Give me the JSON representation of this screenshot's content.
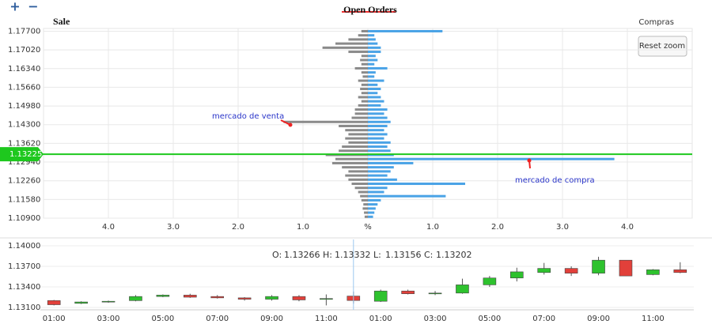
{
  "controls": {
    "zoom_in": "+",
    "zoom_out": "−",
    "reset_zoom": "Reset zoom"
  },
  "chart_data": [
    {
      "type": "orderbook",
      "title": "Open Orders",
      "prices": [
        1.1095,
        1.111,
        1.1125,
        1.114,
        1.1155,
        1.117,
        1.1185,
        1.12,
        1.1215,
        1.123,
        1.1245,
        1.126,
        1.1275,
        1.129,
        1.1305,
        1.132,
        1.1335,
        1.135,
        1.1365,
        1.138,
        1.1395,
        1.141,
        1.1425,
        1.144,
        1.1455,
        1.147,
        1.1485,
        1.15,
        1.1515,
        1.153,
        1.1545,
        1.156,
        1.1575,
        1.159,
        1.1605,
        1.162,
        1.1635,
        1.165,
        1.1665,
        1.168,
        1.1695,
        1.171,
        1.1725,
        1.174,
        1.1755,
        1.177
      ],
      "series": [
        {
          "name": "Sale",
          "color": "#8a8a8a",
          "values": [
            -0.05,
            -0.06,
            -0.08,
            -0.07,
            -0.1,
            -0.12,
            -0.15,
            -0.2,
            -0.25,
            -0.3,
            -0.35,
            -0.3,
            -0.4,
            -0.55,
            -0.5,
            -0.65,
            -0.45,
            -0.4,
            -0.3,
            -0.35,
            -0.3,
            -0.35,
            -0.45,
            -1.3,
            -0.25,
            -0.2,
            -0.2,
            -0.15,
            -0.1,
            -0.15,
            -0.1,
            -0.12,
            -0.1,
            -0.15,
            -0.08,
            -0.1,
            -0.2,
            -0.1,
            -0.12,
            -0.1,
            -0.3,
            -0.7,
            -0.5,
            -0.3,
            -0.15,
            -0.1
          ]
        },
        {
          "name": "Compras",
          "color": "#4aa3e6",
          "values": [
            0.08,
            0.1,
            0.12,
            0.15,
            0.2,
            1.2,
            0.25,
            0.3,
            1.5,
            0.45,
            0.3,
            0.35,
            0.4,
            0.7,
            3.8,
            0.4,
            0.35,
            0.3,
            0.35,
            0.25,
            0.3,
            0.25,
            0.3,
            0.35,
            0.3,
            0.25,
            0.3,
            0.2,
            0.25,
            0.2,
            0.15,
            0.2,
            0.15,
            0.25,
            0.1,
            0.12,
            0.3,
            0.1,
            0.15,
            0.12,
            0.2,
            0.2,
            0.15,
            0.12,
            0.1,
            1.15
          ]
        }
      ],
      "current_price": 1.13225,
      "current_price_color": "#1ec81e",
      "xlim": [
        -5,
        5
      ],
      "xticks": [
        {
          "value": -4,
          "label": "4.0"
        },
        {
          "value": -3,
          "label": "3.0"
        },
        {
          "value": -2,
          "label": "2.0"
        },
        {
          "value": -1,
          "label": "1.0"
        },
        {
          "value": 0,
          "label": "%"
        },
        {
          "value": 1,
          "label": "1.0"
        },
        {
          "value": 2,
          "label": "2.0"
        },
        {
          "value": 3,
          "label": "3.0"
        },
        {
          "value": 4,
          "label": "4.0"
        }
      ],
      "ylim": [
        1.109,
        1.178
      ],
      "yticks": [
        {
          "value": 1.109,
          "label": "1.10900"
        },
        {
          "value": 1.1158,
          "label": "1.11580"
        },
        {
          "value": 1.1226,
          "label": "1.12260"
        },
        {
          "value": 1.1294,
          "label": "1.12940"
        },
        {
          "value": 1.1362,
          "label": "1.13620"
        },
        {
          "value": 1.143,
          "label": "1.14300"
        },
        {
          "value": 1.1498,
          "label": "1.14980"
        },
        {
          "value": 1.1566,
          "label": "1.15660"
        },
        {
          "value": 1.1634,
          "label": "1.16340"
        },
        {
          "value": 1.1702,
          "label": "1.17020"
        },
        {
          "value": 1.177,
          "label": "1.17700"
        }
      ],
      "grid": true,
      "annotations": [
        "mercado de venta",
        "mercado de compra"
      ]
    },
    {
      "type": "candlestick",
      "categories": [
        "01:00",
        null,
        "03:00",
        null,
        "05:00",
        null,
        "07:00",
        null,
        "09:00",
        null,
        "11:00",
        null,
        "01:00",
        null,
        "03:00",
        null,
        "05:00",
        null,
        "07:00",
        null,
        "09:00",
        null,
        "11:00",
        null
      ],
      "open": [
        1.132,
        1.1316,
        1.1318,
        1.132,
        1.1326,
        1.1328,
        1.1326,
        1.1324,
        1.1322,
        1.1326,
        1.1322,
        1.13266,
        1.1319,
        1.1334,
        1.133,
        1.1331,
        1.1343,
        1.1353,
        1.1361,
        1.1367,
        1.136,
        1.1379,
        1.1358,
        1.1365
      ],
      "high": [
        1.1321,
        1.1319,
        1.132,
        1.1328,
        1.1329,
        1.133,
        1.1328,
        1.1325,
        1.1328,
        1.1328,
        1.1329,
        1.13332,
        1.1336,
        1.1336,
        1.1334,
        1.1352,
        1.1356,
        1.1368,
        1.1375,
        1.137,
        1.1384,
        1.1379,
        1.1366,
        1.1376
      ],
      "low": [
        1.1313,
        1.1315,
        1.1317,
        1.1319,
        1.1325,
        1.1324,
        1.1323,
        1.132,
        1.132,
        1.1319,
        1.1313,
        1.13156,
        1.1318,
        1.1329,
        1.1328,
        1.133,
        1.134,
        1.1348,
        1.1358,
        1.1356,
        1.1357,
        1.1356,
        1.1357,
        1.136
      ],
      "close": [
        1.1314,
        1.1318,
        1.1319,
        1.1326,
        1.1328,
        1.1325,
        1.1324,
        1.1322,
        1.1326,
        1.1321,
        1.1323,
        1.13202,
        1.1334,
        1.133,
        1.1331,
        1.1343,
        1.1353,
        1.1362,
        1.1367,
        1.136,
        1.1379,
        1.1356,
        1.1365,
        1.1361
      ],
      "up_color": "#2ec22e",
      "down_color": "#e2403a",
      "ylim": [
        1.131,
        1.14
      ],
      "yticks": [
        {
          "value": 1.131,
          "label": "1.13100"
        },
        {
          "value": 1.134,
          "label": "1.13400"
        },
        {
          "value": 1.137,
          "label": "1.13700"
        },
        {
          "value": 1.14,
          "label": "1.14000"
        }
      ],
      "grid": true,
      "crosshair_index": 11,
      "tooltip_labels": [
        "O:",
        "H:",
        "L:",
        "C:"
      ]
    }
  ]
}
